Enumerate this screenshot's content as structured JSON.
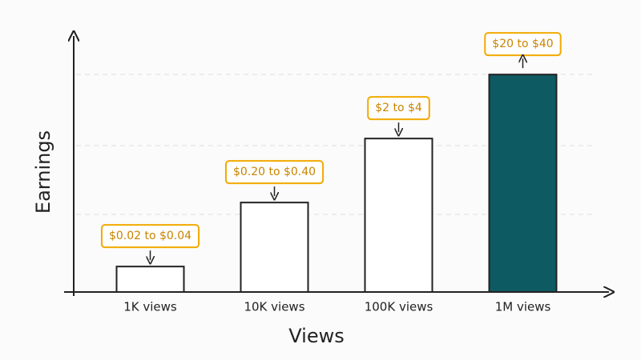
{
  "chart_data": {
    "type": "bar",
    "x_label": "Views",
    "y_label": "Earnings",
    "categories": [
      "1K views",
      "10K views",
      "100K views",
      "1M views"
    ],
    "values": [
      [
        0.02,
        0.04
      ],
      [
        0.2,
        0.4
      ],
      [
        2,
        4
      ],
      [
        20,
        40
      ]
    ],
    "value_labels": [
      "$0.02 to $0.04",
      "$0.20 to $0.40",
      "$2 to $4",
      "$20 to $40"
    ],
    "colors": [
      "#ffffff",
      "#ffffff",
      "#ffffff",
      "#0e5a63"
    ],
    "log_scale": true,
    "ylim": [
      0.016,
      160
    ]
  }
}
